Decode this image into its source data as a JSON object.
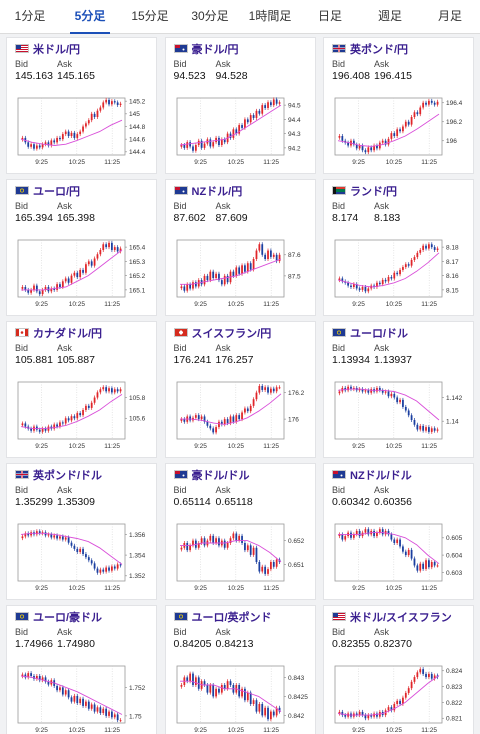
{
  "tabs": [
    {
      "label": "1分足",
      "active": false
    },
    {
      "label": "5分足",
      "active": true
    },
    {
      "label": "15分足",
      "active": false
    },
    {
      "label": "30分足",
      "active": false
    },
    {
      "label": "1時間足",
      "active": false
    },
    {
      "label": "日足",
      "active": false
    },
    {
      "label": "週足",
      "active": false
    },
    {
      "label": "月足",
      "active": false
    }
  ],
  "labels": {
    "bid": "Bid",
    "ask": "Ask"
  },
  "colors": {
    "up": "#e0262a",
    "down": "#1b3fa0",
    "ma": "#d94fd9",
    "pair_text": "#3a1f8f",
    "tab_active": "#1b4fb8"
  },
  "cards": [
    {
      "pair": "米ドル/円",
      "flag": "us-flag",
      "bid": "145.163",
      "ask": "145.165",
      "chart_data": {
        "type": "candlestick",
        "x_ticks": [
          "9:25",
          "10:25",
          "11:25"
        ],
        "y_ticks": [
          145.2,
          145,
          144.8,
          144.6,
          144.4
        ],
        "ylim": [
          144.35,
          145.25
        ],
        "closes": [
          144.62,
          144.55,
          144.48,
          144.52,
          144.45,
          144.5,
          144.47,
          144.52,
          144.55,
          144.5,
          144.58,
          144.55,
          144.62,
          144.6,
          144.68,
          144.72,
          144.65,
          144.7,
          144.62,
          144.68,
          144.72,
          144.8,
          144.85,
          144.9,
          145.0,
          144.95,
          145.05,
          145.1,
          145.18,
          145.22,
          145.15,
          145.2,
          145.18,
          145.14,
          145.16
        ],
        "ma": [
          144.6,
          144.55,
          144.52,
          144.5,
          144.52,
          144.58,
          144.65,
          144.72,
          144.82,
          144.9
        ]
      }
    },
    {
      "pair": "豪ドル/円",
      "flag": "au-flag",
      "bid": "94.523",
      "ask": "94.528",
      "chart_data": {
        "type": "candlestick",
        "x_ticks": [
          "9:25",
          "10:25",
          "11:25"
        ],
        "y_ticks": [
          94.5,
          94.4,
          94.3,
          94.2
        ],
        "ylim": [
          94.15,
          94.55
        ],
        "closes": [
          94.22,
          94.2,
          94.24,
          94.21,
          94.18,
          94.22,
          94.25,
          94.2,
          94.23,
          94.26,
          94.21,
          94.24,
          94.27,
          94.22,
          94.26,
          94.24,
          94.3,
          94.27,
          94.33,
          94.3,
          94.36,
          94.34,
          94.4,
          94.38,
          94.43,
          94.41,
          94.46,
          94.44,
          94.5,
          94.48,
          94.52,
          94.5,
          94.54,
          94.51,
          94.52
        ],
        "ma": [
          94.22,
          94.23,
          94.24,
          94.25,
          94.26,
          94.3,
          94.35,
          94.4,
          94.45,
          94.5
        ]
      }
    },
    {
      "pair": "英ポンド/円",
      "flag": "gb-flag",
      "bid": "196.408",
      "ask": "196.415",
      "chart_data": {
        "type": "candlestick",
        "x_ticks": [
          "9:25",
          "10:25",
          "11:25"
        ],
        "y_ticks": [
          196.4,
          196.2,
          196
        ],
        "ylim": [
          195.85,
          196.45
        ],
        "closes": [
          196.05,
          196.0,
          195.98,
          195.95,
          196.0,
          195.96,
          195.92,
          195.95,
          195.9,
          195.88,
          195.93,
          195.9,
          195.95,
          195.92,
          195.98,
          196.0,
          195.96,
          196.02,
          196.08,
          196.05,
          196.12,
          196.1,
          196.15,
          196.2,
          196.17,
          196.25,
          196.3,
          196.28,
          196.35,
          196.4,
          196.38,
          196.42,
          196.4,
          196.38,
          196.41
        ],
        "ma": [
          196.0,
          195.98,
          195.95,
          195.94,
          195.96,
          196.0,
          196.05,
          196.12,
          196.2,
          196.28
        ]
      }
    },
    {
      "pair": "ユーロ/円",
      "flag": "eu-flag",
      "bid": "165.394",
      "ask": "165.398",
      "chart_data": {
        "type": "candlestick",
        "x_ticks": [
          "9:25",
          "10:25",
          "11:25"
        ],
        "y_ticks": [
          165.4,
          165.3,
          165.2,
          165.1
        ],
        "ylim": [
          165.05,
          165.45
        ],
        "closes": [
          165.12,
          165.1,
          165.08,
          165.1,
          165.13,
          165.09,
          165.07,
          165.1,
          165.12,
          165.09,
          165.11,
          165.1,
          165.14,
          165.12,
          165.16,
          165.18,
          165.15,
          165.2,
          165.22,
          165.19,
          165.24,
          165.22,
          165.28,
          165.3,
          165.27,
          165.32,
          165.35,
          165.38,
          165.42,
          165.4,
          165.43,
          165.38,
          165.4,
          165.37,
          165.39
        ],
        "ma": [
          165.1,
          165.1,
          165.1,
          165.11,
          165.12,
          165.16,
          165.2,
          165.26,
          165.32,
          165.38
        ]
      }
    },
    {
      "pair": "NZドル/円",
      "flag": "nz-flag",
      "bid": "87.602",
      "ask": "87.609",
      "chart_data": {
        "type": "candlestick",
        "x_ticks": [
          "9:25",
          "10:25",
          "11:25"
        ],
        "y_ticks": [
          87.6,
          87.5
        ],
        "ylim": [
          87.4,
          87.67
        ],
        "closes": [
          87.45,
          87.43,
          87.46,
          87.44,
          87.47,
          87.45,
          87.48,
          87.46,
          87.5,
          87.48,
          87.52,
          87.49,
          87.51,
          87.48,
          87.46,
          87.5,
          87.47,
          87.52,
          87.5,
          87.54,
          87.51,
          87.55,
          87.52,
          87.56,
          87.53,
          87.58,
          87.62,
          87.65,
          87.6,
          87.58,
          87.62,
          87.59,
          87.6,
          87.57,
          87.6
        ],
        "ma": [
          87.46,
          87.46,
          87.47,
          87.48,
          87.49,
          87.5,
          87.52,
          87.54,
          87.56,
          87.58
        ]
      }
    },
    {
      "pair": "ランド/円",
      "flag": "za-flag",
      "bid": "8.174",
      "ask": "8.183",
      "chart_data": {
        "type": "candlestick",
        "x_ticks": [
          "9:25",
          "10:25",
          "11:25"
        ],
        "y_ticks": [
          8.18,
          8.17,
          8.16,
          8.15
        ],
        "ylim": [
          8.145,
          8.185
        ],
        "closes": [
          8.158,
          8.156,
          8.155,
          8.153,
          8.152,
          8.154,
          8.151,
          8.15,
          8.152,
          8.149,
          8.151,
          8.153,
          8.152,
          8.155,
          8.154,
          8.157,
          8.156,
          8.159,
          8.158,
          8.162,
          8.161,
          8.164,
          8.166,
          8.168,
          8.167,
          8.171,
          8.173,
          8.176,
          8.178,
          8.181,
          8.179,
          8.182,
          8.18,
          8.178,
          8.179
        ],
        "ma": [
          8.157,
          8.155,
          8.153,
          8.152,
          8.153,
          8.155,
          8.158,
          8.163,
          8.169,
          8.176
        ]
      }
    },
    {
      "pair": "カナダドル/円",
      "flag": "ca-flag",
      "bid": "105.881",
      "ask": "105.887",
      "chart_data": {
        "type": "candlestick",
        "x_ticks": [
          "9:25",
          "10:25",
          "11:25"
        ],
        "y_ticks": [
          105.8,
          105.6
        ],
        "ylim": [
          105.4,
          105.95
        ],
        "closes": [
          105.55,
          105.52,
          105.5,
          105.48,
          105.52,
          105.49,
          105.47,
          105.5,
          105.48,
          105.52,
          105.5,
          105.54,
          105.52,
          105.56,
          105.55,
          105.6,
          105.58,
          105.62,
          105.6,
          105.65,
          105.63,
          105.68,
          105.72,
          105.7,
          105.75,
          105.8,
          105.85,
          105.88,
          105.9,
          105.86,
          105.89,
          105.85,
          105.88,
          105.86,
          105.88
        ],
        "ma": [
          105.52,
          105.5,
          105.5,
          105.51,
          105.53,
          105.57,
          105.62,
          105.68,
          105.76,
          105.83
        ]
      }
    },
    {
      "pair": "スイスフラン/円",
      "flag": "ch-flag",
      "bid": "176.241",
      "ask": "176.257",
      "chart_data": {
        "type": "candlestick",
        "x_ticks": [
          "9:25",
          "10:25",
          "11:25"
        ],
        "y_ticks": [
          176.2,
          176
        ],
        "ylim": [
          175.85,
          176.28
        ],
        "closes": [
          176.0,
          175.98,
          176.02,
          175.99,
          176.01,
          176.03,
          176.0,
          176.02,
          175.98,
          175.95,
          175.93,
          175.9,
          175.94,
          175.98,
          175.96,
          176.0,
          175.97,
          176.02,
          175.98,
          176.03,
          176.0,
          176.05,
          176.08,
          176.06,
          176.1,
          176.15,
          176.2,
          176.25,
          176.22,
          176.24,
          176.2,
          176.23,
          176.21,
          176.24,
          176.24
        ],
        "ma": [
          176.0,
          176.0,
          175.99,
          175.97,
          175.96,
          175.98,
          176.01,
          176.06,
          176.12,
          176.19
        ]
      }
    },
    {
      "pair": "ユーロ/ドル",
      "flag": "eu-flag",
      "bid": "1.13934",
      "ask": "1.13937",
      "chart_data": {
        "type": "candlestick",
        "x_ticks": [
          "9:25",
          "10:25",
          "11:25"
        ],
        "y_ticks": [
          1.142,
          1.14
        ],
        "ylim": [
          1.1385,
          1.1433
        ],
        "closes": [
          1.1425,
          1.1428,
          1.1426,
          1.1429,
          1.1427,
          1.1428,
          1.1426,
          1.1427,
          1.1425,
          1.1426,
          1.1424,
          1.1427,
          1.1425,
          1.1428,
          1.1426,
          1.1424,
          1.1425,
          1.1421,
          1.1423,
          1.142,
          1.1416,
          1.1418,
          1.1412,
          1.1409,
          1.1405,
          1.1401,
          1.1397,
          1.1393,
          1.1396,
          1.1392,
          1.1395,
          1.1391,
          1.1394,
          1.1392,
          1.1393
        ],
        "ma": [
          1.1426,
          1.1427,
          1.1427,
          1.1426,
          1.1426,
          1.1425,
          1.1422,
          1.1417,
          1.1409,
          1.1401
        ]
      }
    },
    {
      "pair": "英ポンド/ドル",
      "flag": "gb-flag",
      "bid": "1.35299",
      "ask": "1.35309",
      "chart_data": {
        "type": "candlestick",
        "x_ticks": [
          "9:25",
          "10:25",
          "11:25"
        ],
        "y_ticks": [
          1.356,
          1.354,
          1.352
        ],
        "ylim": [
          1.3515,
          1.357
        ],
        "closes": [
          1.3558,
          1.3561,
          1.3559,
          1.3562,
          1.356,
          1.3563,
          1.3561,
          1.3562,
          1.3559,
          1.356,
          1.3557,
          1.3559,
          1.3556,
          1.3558,
          1.3555,
          1.3557,
          1.3552,
          1.3549,
          1.3546,
          1.3543,
          1.3546,
          1.3541,
          1.3538,
          1.3535,
          1.3532,
          1.3527,
          1.3523,
          1.3526,
          1.3524,
          1.3528,
          1.3525,
          1.3529,
          1.3527,
          1.3531,
          1.353
        ],
        "ma": [
          1.356,
          1.3561,
          1.3561,
          1.356,
          1.3558,
          1.3556,
          1.3553,
          1.3547,
          1.3539,
          1.3531
        ]
      }
    },
    {
      "pair": "豪ドル/ドル",
      "flag": "au-flag",
      "bid": "0.65114",
      "ask": "0.65118",
      "chart_data": {
        "type": "candlestick",
        "x_ticks": [
          "9:25",
          "10:25",
          "11:25"
        ],
        "y_ticks": [
          0.652,
          0.651
        ],
        "ylim": [
          0.6503,
          0.6527
        ],
        "closes": [
          0.6517,
          0.6519,
          0.6516,
          0.6518,
          0.652,
          0.6517,
          0.6519,
          0.6521,
          0.6518,
          0.652,
          0.6522,
          0.6519,
          0.6521,
          0.6518,
          0.652,
          0.6517,
          0.6519,
          0.6521,
          0.6523,
          0.652,
          0.6522,
          0.6519,
          0.6516,
          0.6518,
          0.6514,
          0.6517,
          0.6511,
          0.6507,
          0.6509,
          0.6506,
          0.6508,
          0.6511,
          0.6509,
          0.6512,
          0.6511
        ],
        "ma": [
          0.6518,
          0.6518,
          0.6519,
          0.6519,
          0.6519,
          0.652,
          0.652,
          0.6518,
          0.6515,
          0.6511
        ]
      }
    },
    {
      "pair": "NZドル/ドル",
      "flag": "nz-flag",
      "bid": "0.60342",
      "ask": "0.60356",
      "chart_data": {
        "type": "candlestick",
        "x_ticks": [
          "9:25",
          "10:25",
          "11:25"
        ],
        "y_ticks": [
          0.605,
          0.604,
          0.603
        ],
        "ylim": [
          0.6025,
          0.6058
        ],
        "closes": [
          0.6052,
          0.6049,
          0.6051,
          0.6053,
          0.605,
          0.6052,
          0.6054,
          0.6051,
          0.6053,
          0.6055,
          0.6052,
          0.6054,
          0.6051,
          0.6053,
          0.6055,
          0.6052,
          0.6054,
          0.6052,
          0.6049,
          0.6047,
          0.6049,
          0.6045,
          0.6042,
          0.604,
          0.6043,
          0.6038,
          0.6034,
          0.6031,
          0.6035,
          0.6032,
          0.6037,
          0.6033,
          0.6036,
          0.6034,
          0.6034
        ],
        "ma": [
          0.6052,
          0.6052,
          0.6052,
          0.6053,
          0.6053,
          0.6052,
          0.605,
          0.6046,
          0.604,
          0.6035
        ]
      }
    },
    {
      "pair": "ユーロ/豪ドル",
      "flag": "eu-flag",
      "bid": "1.74966",
      "ask": "1.74980",
      "chart_data": {
        "type": "candlestick",
        "x_ticks": [
          "9:25",
          "10:25",
          "11:25"
        ],
        "y_ticks": [
          1.752,
          1.75
        ],
        "ylim": [
          1.7495,
          1.7535
        ],
        "closes": [
          1.7529,
          1.7527,
          1.753,
          1.7528,
          1.7526,
          1.7528,
          1.7525,
          1.7527,
          1.7524,
          1.7522,
          1.7525,
          1.7521,
          1.7518,
          1.752,
          1.7515,
          1.7518,
          1.7513,
          1.751,
          1.7514,
          1.7509,
          1.7512,
          1.7507,
          1.751,
          1.7505,
          1.7508,
          1.7503,
          1.7506,
          1.7502,
          1.7505,
          1.75,
          1.7503,
          1.7499,
          1.7501,
          1.7497,
          1.7497
        ],
        "ma": [
          1.7528,
          1.7527,
          1.7525,
          1.7523,
          1.752,
          1.7517,
          1.7513,
          1.7509,
          1.7505,
          1.7501
        ]
      }
    },
    {
      "pair": "ユーロ/英ポンド",
      "flag": "eu-flag",
      "bid": "0.84205",
      "ask": "0.84213",
      "chart_data": {
        "type": "candlestick",
        "x_ticks": [
          "9:25",
          "10:25",
          "11:25"
        ],
        "y_ticks": [
          0.843,
          0.8425,
          0.842
        ],
        "ylim": [
          0.8418,
          0.8433
        ],
        "closes": [
          0.8428,
          0.843,
          0.8429,
          0.8431,
          0.8428,
          0.843,
          0.8427,
          0.8429,
          0.8428,
          0.8426,
          0.8428,
          0.8425,
          0.8427,
          0.8426,
          0.8428,
          0.8427,
          0.8429,
          0.8428,
          0.8426,
          0.8428,
          0.8425,
          0.8427,
          0.8424,
          0.8426,
          0.8423,
          0.8424,
          0.8421,
          0.8423,
          0.842,
          0.8422,
          0.8419,
          0.8421,
          0.842,
          0.8422,
          0.8421
        ],
        "ma": [
          0.8429,
          0.8429,
          0.8428,
          0.8428,
          0.8427,
          0.8427,
          0.8426,
          0.8425,
          0.8423,
          0.8421
        ]
      }
    },
    {
      "pair": "米ドル/スイスフラン",
      "flag": "us-flag",
      "bid": "0.82355",
      "ask": "0.82370",
      "chart_data": {
        "type": "candlestick",
        "x_ticks": [
          "9:25",
          "10:25",
          "11:25"
        ],
        "y_ticks": [
          0.824,
          0.823,
          0.822,
          0.821
        ],
        "ylim": [
          0.8207,
          0.8243
        ],
        "closes": [
          0.8214,
          0.8212,
          0.8211,
          0.8213,
          0.8211,
          0.8213,
          0.8212,
          0.8214,
          0.8212,
          0.821,
          0.8212,
          0.8211,
          0.8213,
          0.8211,
          0.8214,
          0.8212,
          0.8215,
          0.8217,
          0.8215,
          0.8219,
          0.8221,
          0.8219,
          0.8223,
          0.8226,
          0.8229,
          0.8233,
          0.8236,
          0.8239,
          0.8241,
          0.8238,
          0.8236,
          0.8238,
          0.8235,
          0.8237,
          0.8236
        ],
        "ma": [
          0.8213,
          0.8212,
          0.8212,
          0.8212,
          0.8213,
          0.8216,
          0.822,
          0.8226,
          0.8232,
          0.8237
        ]
      }
    }
  ]
}
